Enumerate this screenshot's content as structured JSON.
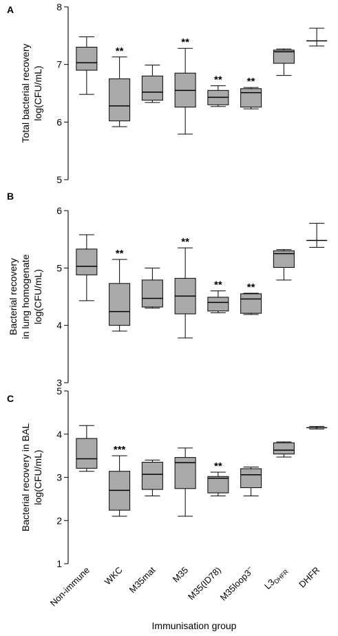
{
  "chart_data": [
    {
      "type": "box",
      "panel": "A",
      "ylabel": [
        "Total bacterial recovery",
        "log(CFU/mL)"
      ],
      "ylim": [
        5,
        8
      ],
      "yticks": [
        5,
        6,
        7,
        8
      ],
      "categories": [
        "Non-immune",
        "WKC",
        "M35mat",
        "M35",
        "M35(ID78)",
        "M35loop3⁻",
        "L3DHFR",
        "DHFR"
      ],
      "boxes": [
        {
          "min": 6.48,
          "q1": 6.9,
          "median": 7.03,
          "q3": 7.3,
          "max": 7.48,
          "sig": ""
        },
        {
          "min": 5.92,
          "q1": 6.02,
          "median": 6.28,
          "q3": 6.75,
          "max": 7.13,
          "sig": "**"
        },
        {
          "min": 6.34,
          "q1": 6.38,
          "median": 6.52,
          "q3": 6.8,
          "max": 6.99,
          "sig": ""
        },
        {
          "min": 5.79,
          "q1": 6.26,
          "median": 6.55,
          "q3": 6.85,
          "max": 7.28,
          "sig": "**"
        },
        {
          "min": 6.27,
          "q1": 6.3,
          "median": 6.43,
          "q3": 6.55,
          "max": 6.63,
          "sig": "**"
        },
        {
          "min": 6.23,
          "q1": 6.26,
          "median": 6.51,
          "q3": 6.58,
          "max": 6.6,
          "sig": "**"
        },
        {
          "min": 6.81,
          "q1": 7.02,
          "median": 7.22,
          "q3": 7.25,
          "max": 7.27,
          "sig": ""
        },
        {
          "min": 7.32,
          "median": 7.41,
          "max": 7.63,
          "sig": ""
        }
      ]
    },
    {
      "type": "box",
      "panel": "B",
      "ylabel": [
        "Bacterial recovery",
        "in lung homogenate",
        "log(CFU/mL)"
      ],
      "ylim": [
        3,
        6
      ],
      "yticks": [
        3,
        4,
        5,
        6
      ],
      "categories": [
        "Non-immune",
        "WKC",
        "M35mat",
        "M35",
        "M35(ID78)",
        "M35loop3⁻",
        "L3DHFR",
        "DHFR"
      ],
      "boxes": [
        {
          "min": 4.43,
          "q1": 4.88,
          "median": 5.03,
          "q3": 5.33,
          "max": 5.58,
          "sig": ""
        },
        {
          "min": 3.9,
          "q1": 4.0,
          "median": 4.24,
          "q3": 4.73,
          "max": 5.15,
          "sig": "**"
        },
        {
          "min": 4.3,
          "q1": 4.32,
          "median": 4.47,
          "q3": 4.79,
          "max": 5.0,
          "sig": ""
        },
        {
          "min": 3.78,
          "q1": 4.2,
          "median": 4.51,
          "q3": 4.82,
          "max": 5.35,
          "sig": "**"
        },
        {
          "min": 4.22,
          "q1": 4.25,
          "median": 4.4,
          "q3": 4.49,
          "max": 4.6,
          "sig": "**"
        },
        {
          "min": 4.19,
          "q1": 4.21,
          "median": 4.46,
          "q3": 4.55,
          "max": 4.56,
          "sig": "**"
        },
        {
          "min": 4.79,
          "q1": 5.01,
          "median": 5.25,
          "q3": 5.3,
          "max": 5.32,
          "sig": ""
        },
        {
          "min": 5.36,
          "median": 5.48,
          "max": 5.78,
          "sig": ""
        }
      ]
    },
    {
      "type": "box",
      "panel": "C",
      "ylabel": [
        "Bacterial recovery in BAL",
        "log(CFU/mL)"
      ],
      "ylim": [
        1,
        5
      ],
      "yticks": [
        1,
        2,
        3,
        4,
        5
      ],
      "categories": [
        "Non-immune",
        "WKC",
        "M35mat",
        "M35",
        "M35(ID78)",
        "M35loop3⁻",
        "L3DHFR",
        "DHFR"
      ],
      "boxes": [
        {
          "min": 3.14,
          "q1": 3.21,
          "median": 3.43,
          "q3": 3.9,
          "max": 4.2,
          "sig": ""
        },
        {
          "min": 2.1,
          "q1": 2.24,
          "median": 2.7,
          "q3": 3.14,
          "max": 3.5,
          "sig": "***"
        },
        {
          "min": 2.57,
          "q1": 2.72,
          "median": 3.07,
          "q3": 3.35,
          "max": 3.4,
          "sig": ""
        },
        {
          "min": 2.1,
          "q1": 2.74,
          "median": 3.34,
          "q3": 3.46,
          "max": 3.68,
          "sig": ""
        },
        {
          "min": 2.57,
          "q1": 2.64,
          "median": 2.98,
          "q3": 3.02,
          "max": 3.12,
          "sig": "**"
        },
        {
          "min": 2.57,
          "q1": 2.76,
          "median": 3.06,
          "q3": 3.2,
          "max": 3.24,
          "sig": ""
        },
        {
          "min": 3.47,
          "q1": 3.54,
          "median": 3.63,
          "q3": 3.8,
          "max": 3.82,
          "sig": ""
        },
        {
          "min": 4.12,
          "median": 4.15,
          "max": 4.18,
          "sig": ""
        }
      ]
    }
  ],
  "xlabel": "Immunisation group",
  "category_labels": [
    {
      "main": "Non-immune",
      "sub": "",
      "sup": ""
    },
    {
      "main": "WKC",
      "sub": "",
      "sup": ""
    },
    {
      "main": "M35mat",
      "sub": "",
      "sup": ""
    },
    {
      "main": "M35",
      "sub": "",
      "sup": ""
    },
    {
      "main": "M35(ID78)",
      "sub": "",
      "sup": ""
    },
    {
      "main": "M35loop3",
      "sub": "",
      "sup": "−"
    },
    {
      "main": "L3",
      "sub": "DHFR",
      "sup": ""
    },
    {
      "main": "DHFR",
      "sub": "",
      "sup": ""
    }
  ]
}
